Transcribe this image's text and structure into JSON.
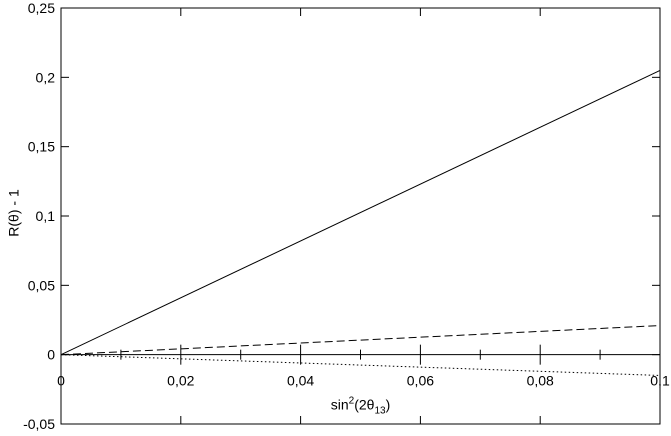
{
  "chart_data": {
    "type": "line",
    "title": "",
    "xlabel": "sin²(2θ₁₃)",
    "xlabel_parts": {
      "main": "sin",
      "sup": "2",
      "mid": "(2θ",
      "sub": "13",
      "end": ")"
    },
    "ylabel": "R(θ) - 1",
    "xlim": [
      0,
      0.1
    ],
    "ylim": [
      -0.05,
      0.25
    ],
    "x_ticks": [
      0,
      0.02,
      0.04,
      0.06,
      0.08,
      0.1
    ],
    "x_tick_labels": [
      "0",
      "0,02",
      "0,04",
      "0,06",
      "0,08",
      "0,1"
    ],
    "y_ticks": [
      -0.05,
      0,
      0.05,
      0.1,
      0.15,
      0.2,
      0.25
    ],
    "y_tick_labels": [
      "-0,05",
      "0",
      "0,05",
      "0,1",
      "0,15",
      "0,2",
      "0,25"
    ],
    "grid": false,
    "zero_line": true,
    "series": [
      {
        "style": "solid",
        "color": "#000000",
        "x": [
          0,
          0.1
        ],
        "y": [
          0,
          0.205
        ]
      },
      {
        "style": "dashed",
        "color": "#000000",
        "x": [
          0,
          0.1
        ],
        "y": [
          0,
          0.021
        ]
      },
      {
        "style": "dotted",
        "color": "#000000",
        "x": [
          0,
          0.1
        ],
        "y": [
          0,
          -0.015
        ]
      }
    ]
  }
}
